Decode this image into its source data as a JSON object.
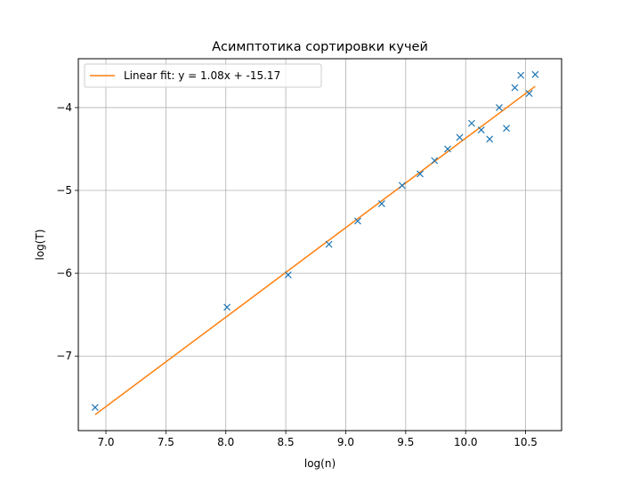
{
  "chart_data": {
    "type": "scatter",
    "title": "Асимптотика сортировки кучей",
    "xlabel": "log(n)",
    "ylabel": "log(T)",
    "xlim": [
      6.77,
      10.8
    ],
    "ylim": [
      -7.9,
      -3.41
    ],
    "xticks": [
      7.0,
      7.5,
      8.0,
      8.5,
      9.0,
      9.5,
      10.0,
      10.5
    ],
    "xtick_labels": [
      "7.0",
      "7.5",
      "8.0",
      "8.5",
      "9.0",
      "9.5",
      "10.0",
      "10.5"
    ],
    "yticks": [
      -7,
      -6,
      -5,
      -4
    ],
    "ytick_labels": [
      "−7",
      "−6",
      "−5",
      "−4"
    ],
    "grid": true,
    "legend_position": "top-left",
    "series": [
      {
        "kind": "scatter",
        "marker": "x",
        "color": "#1f77b4",
        "x": [
          6.91,
          8.01,
          8.52,
          8.86,
          9.1,
          9.3,
          9.47,
          9.62,
          9.74,
          9.85,
          9.95,
          10.05,
          10.13,
          10.2,
          10.28,
          10.34,
          10.41,
          10.46,
          10.53,
          10.58
        ],
        "y": [
          -7.62,
          -6.41,
          -6.02,
          -5.65,
          -5.37,
          -5.16,
          -4.94,
          -4.8,
          -4.64,
          -4.5,
          -4.36,
          -4.19,
          -4.27,
          -4.38,
          -4.0,
          -4.25,
          -3.76,
          -3.61,
          -3.83,
          -3.6
        ]
      },
      {
        "kind": "line",
        "name": "Linear fit: y = 1.08x + -15.17",
        "color": "#ff7f0e",
        "slope": 1.08,
        "intercept": -15.17,
        "x": [
          6.91,
          10.58
        ]
      }
    ]
  }
}
